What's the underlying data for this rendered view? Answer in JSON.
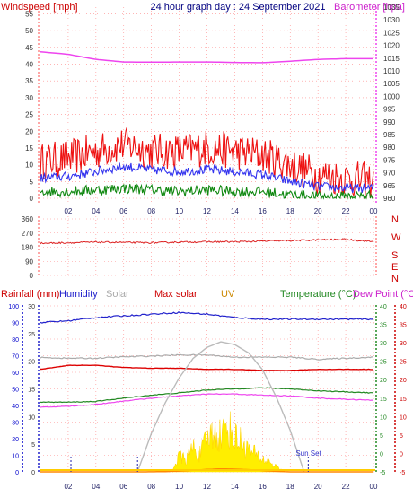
{
  "header": {
    "windspeed_label": "Windspeed [mph]",
    "title": "24 hour graph day : 24 September 2021",
    "barometer_label": "Barometer [hpa]"
  },
  "middle": {
    "compass_labels": [
      "N",
      "W",
      "S",
      "E",
      "N"
    ]
  },
  "bottom_header": {
    "rainfall": "Rainfall (mm)",
    "humidity": "Humidity",
    "solar": "Solar",
    "max_solar": "Max solar",
    "uv": "UV",
    "temperature": "Temperature (°C)",
    "dew_point": "Dew Point (°C)"
  },
  "annotations": {
    "sun_set": "Sun Set"
  },
  "colors": {
    "wind": "#ee1111",
    "wind_avg": "#3333ee",
    "wind_low": "#118811",
    "barometer": "#ee44ee",
    "direction": "#dd2222",
    "humidity": "#2222cc",
    "solar": "#aaaaaa",
    "max_solar": "#dd0000",
    "uv": "#cc8800",
    "temperature": "#228822",
    "dew_point": "#ee44ee",
    "rain_axis": "#0000cc",
    "grid": "#ff8888",
    "solar_fill": "#ffee00"
  },
  "chart_data": [
    {
      "type": "line",
      "title": "24 hour graph day : 24 September 2021",
      "x_ticks": [
        "02",
        "04",
        "06",
        "08",
        "10",
        "12",
        "14",
        "16",
        "18",
        "20",
        "22",
        "00"
      ],
      "y_left": {
        "label": "Windspeed [mph]",
        "ticks": [
          0,
          5,
          10,
          15,
          20,
          25,
          30,
          35,
          40,
          45,
          50,
          55
        ],
        "range": [
          0,
          57
        ]
      },
      "y_right": {
        "label": "Barometer [hpa]",
        "ticks": [
          960,
          965,
          970,
          975,
          980,
          985,
          990,
          995,
          1000,
          1005,
          1010,
          1015,
          1020,
          1025,
          1030,
          1035
        ],
        "range": [
          960,
          1035
        ]
      },
      "grid": true,
      "series": [
        {
          "name": "Barometer [hpa]",
          "axis": "right",
          "x": [
            0,
            2,
            4,
            6,
            8,
            10,
            12,
            14,
            16,
            18,
            20,
            22,
            24
          ],
          "values": [
            1017.5,
            1016.5,
            1014.5,
            1013.5,
            1013.4,
            1013.5,
            1013.5,
            1013.3,
            1013.2,
            1013.8,
            1014.5,
            1014.8,
            1014.8
          ]
        },
        {
          "axis": "left",
          "x": [
            0,
            2,
            4,
            6,
            8,
            10,
            12,
            14,
            16,
            18,
            20,
            22,
            24
          ],
          "values": [
            11,
            12,
            14,
            16,
            14,
            14,
            15,
            14,
            13,
            10,
            7,
            6,
            5
          ]
        },
        {
          "axis": "left",
          "x": [
            0,
            2,
            4,
            6,
            8,
            10,
            12,
            14,
            16,
            18,
            20,
            22,
            24
          ],
          "values": [
            6,
            6.5,
            8,
            9.5,
            8.5,
            8,
            8.5,
            8,
            7,
            5,
            3.5,
            3,
            3
          ]
        },
        {
          "axis": "left",
          "x": [
            0,
            2,
            4,
            6,
            8,
            10,
            12,
            14,
            16,
            18,
            20,
            22,
            24
          ],
          "values": [
            2,
            2,
            2.5,
            3,
            2.5,
            2,
            2.5,
            2,
            2,
            1,
            0.5,
            0.5,
            1
          ]
        }
      ]
    },
    {
      "type": "line",
      "y_left": {
        "ticks": [
          0,
          90,
          180,
          270,
          360
        ],
        "range": [
          0,
          360
        ]
      },
      "y_right": {
        "ticks": [
          "N",
          "W",
          "S",
          "E",
          "N"
        ]
      },
      "grid": true,
      "series": [
        {
          "x": [
            0,
            2,
            4,
            6,
            8,
            10,
            12,
            14,
            16,
            18,
            20,
            22,
            24
          ],
          "values": [
            205,
            208,
            212,
            210,
            208,
            212,
            214,
            214,
            218,
            222,
            226,
            230,
            215
          ]
        }
      ]
    },
    {
      "type": "line",
      "x_ticks": [
        "02",
        "04",
        "06",
        "08",
        "10",
        "12",
        "14",
        "16",
        "18",
        "20",
        "22",
        "00"
      ],
      "axes": {
        "rainfall_mm": {
          "label": "Rainfall (mm)",
          "ticks": [
            0,
            0.5,
            1,
            1.5,
            2,
            2.5,
            3,
            3.5,
            4,
            4.5,
            5
          ],
          "range": [
            0,
            5
          ]
        },
        "humidity_pct": {
          "label": "Humidity",
          "ticks": [
            0,
            10,
            20,
            30,
            40,
            50,
            60,
            70,
            80,
            90,
            100
          ],
          "range": [
            0,
            100
          ]
        },
        "uv_index": {
          "label": "UV",
          "ticks": [
            0,
            5,
            10,
            15,
            20,
            25,
            30
          ],
          "range": [
            0,
            30
          ]
        },
        "temperature_c": {
          "label": "Temperature (°C)",
          "ticks": [
            -5,
            0,
            5,
            10,
            15,
            20,
            25,
            30,
            35,
            40
          ],
          "range": [
            -5,
            40
          ]
        },
        "dew_point_c": {
          "label": "Dew Point (°C)",
          "ticks": [
            -5,
            0,
            5,
            10,
            15,
            20,
            25,
            30,
            35,
            40
          ],
          "range": [
            -5,
            40
          ]
        }
      },
      "grid": true,
      "series": [
        {
          "name": "Humidity",
          "axis": "humidity_pct",
          "x": [
            0,
            2,
            4,
            6,
            8,
            10,
            12,
            14,
            16,
            18,
            20,
            22,
            24
          ],
          "values": [
            90,
            91,
            93,
            94,
            95,
            96,
            95,
            93,
            92,
            92,
            92,
            92,
            92
          ]
        },
        {
          "name": "Solar",
          "axis": "temperature_c",
          "x": [
            0,
            2,
            4,
            6,
            8,
            10,
            12,
            14,
            16,
            18,
            20,
            22,
            24
          ],
          "values": [
            26,
            25.8,
            25.8,
            26.2,
            26.4,
            26.7,
            26.7,
            26.1,
            26.1,
            26.1,
            25.5,
            25.8,
            26.1
          ]
        },
        {
          "name": "Max solar",
          "axis": "temperature_c",
          "x": [
            0,
            2,
            4,
            6,
            8,
            10,
            12,
            14,
            16,
            18,
            20,
            22,
            24
          ],
          "values": [
            22.8,
            23.9,
            23.9,
            23.3,
            23.1,
            23.1,
            22.8,
            22.8,
            22.5,
            22.5,
            22.8,
            22.8,
            22.8
          ]
        },
        {
          "name": "Temperature (°C)",
          "axis": "temperature_c",
          "x": [
            0,
            2,
            4,
            6,
            8,
            10,
            12,
            14,
            16,
            18,
            20,
            22,
            24
          ],
          "values": [
            13.9,
            13.9,
            14.1,
            15.0,
            15.8,
            16.4,
            17.2,
            17.5,
            17.8,
            17.5,
            17.0,
            16.7,
            16.4
          ]
        },
        {
          "name": "Dew Point (°C)",
          "axis": "dew_point_c",
          "x": [
            0,
            2,
            4,
            6,
            8,
            10,
            12,
            14,
            16,
            18,
            20,
            22,
            24
          ],
          "values": [
            12.5,
            12.8,
            13.3,
            14.2,
            15.0,
            15.6,
            16.1,
            16.1,
            15.8,
            15.6,
            15.0,
            14.7,
            14.4
          ]
        },
        {
          "name": "Max solar",
          "axis": "uv_index",
          "x": [
            7,
            8,
            9,
            10,
            11,
            12,
            13,
            14,
            15,
            16,
            17,
            18,
            19
          ],
          "values": [
            0,
            7,
            12.5,
            17,
            20.5,
            22.5,
            23.5,
            23,
            21.5,
            18.5,
            13.5,
            7.5,
            0
          ]
        },
        {
          "name": "Solar",
          "axis": "uv_index",
          "x": [
            9.5,
            10,
            10.5,
            11,
            11.5,
            12,
            12.5,
            13,
            13.5,
            14,
            14.5,
            15,
            15.5,
            16,
            16.5,
            17,
            17.5
          ],
          "values": [
            0.5,
            3,
            2.5,
            5,
            3.5,
            6.5,
            8,
            7.5,
            9,
            7,
            6,
            4.5,
            3.5,
            2.5,
            2,
            1,
            0.3
          ]
        },
        {
          "name": "UV",
          "axis": "uv_index",
          "x": [
            0,
            7.5,
            9,
            10,
            11,
            12,
            13,
            14,
            15,
            16,
            17,
            18,
            24
          ],
          "values": [
            0,
            0,
            0.1,
            0.3,
            0.6,
            0.9,
            1.1,
            1.0,
            0.8,
            0.5,
            0.2,
            0,
            0
          ]
        }
      ],
      "markers": [
        {
          "label": "Sun Set",
          "x": 19.3
        }
      ]
    }
  ]
}
